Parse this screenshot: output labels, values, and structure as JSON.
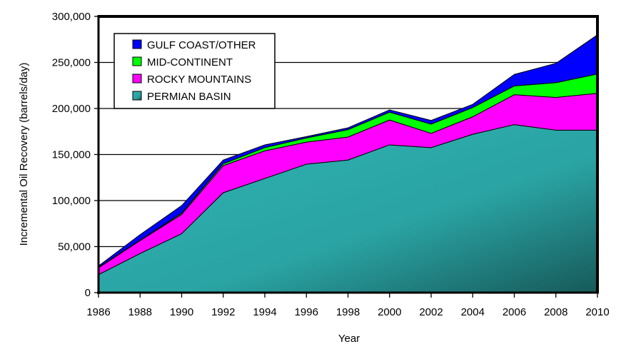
{
  "chart_data": {
    "type": "area",
    "stacked": true,
    "title": "",
    "xlabel": "Year",
    "ylabel": "Incremental Oil Recovery (barrels/day)",
    "ylim": [
      0,
      300000
    ],
    "yticks": [
      "0",
      "50,000",
      "100,000",
      "150,000",
      "200,000",
      "250,000",
      "300,000"
    ],
    "ytick_values": [
      0,
      50000,
      100000,
      150000,
      200000,
      250000,
      300000
    ],
    "x": [
      1986,
      1988,
      1990,
      1992,
      1994,
      1996,
      1998,
      2000,
      2002,
      2004,
      2006,
      2008,
      2010
    ],
    "xticks": [
      "1986",
      "1988",
      "1990",
      "1992",
      "1994",
      "1996",
      "1998",
      "2000",
      "2002",
      "2004",
      "2006",
      "2008",
      "2010"
    ],
    "grid": true,
    "legend_position": "top-left",
    "series": [
      {
        "name": "PERMIAN BASIN",
        "color": "#2aa9a9",
        "values": [
          19500,
          42500,
          64000,
          108500,
          124000,
          139500,
          144000,
          160500,
          157500,
          172000,
          182500,
          176500,
          176500
        ]
      },
      {
        "name": "ROCKY MOUNTAINS",
        "color": "#ff00ff",
        "values": [
          7500,
          14000,
          21000,
          29500,
          30000,
          24000,
          25000,
          27000,
          15500,
          19000,
          32500,
          35500,
          40000
        ]
      },
      {
        "name": "MID-CONTINENT",
        "color": "#00ff00",
        "values": [
          500,
          500,
          1500,
          2000,
          3500,
          4500,
          8000,
          8500,
          10000,
          10000,
          9500,
          16000,
          21000
        ]
      },
      {
        "name": "GULF COAST/OTHER",
        "color": "#0000ff",
        "values": [
          1500,
          6000,
          8000,
          4000,
          3000,
          1500,
          2000,
          2500,
          4000,
          3500,
          12500,
          21000,
          42500
        ]
      }
    ],
    "legend": [
      "GULF COAST/OTHER",
      "MID-CONTINENT",
      "ROCKY MOUNTAINS",
      "PERMIAN BASIN"
    ]
  }
}
